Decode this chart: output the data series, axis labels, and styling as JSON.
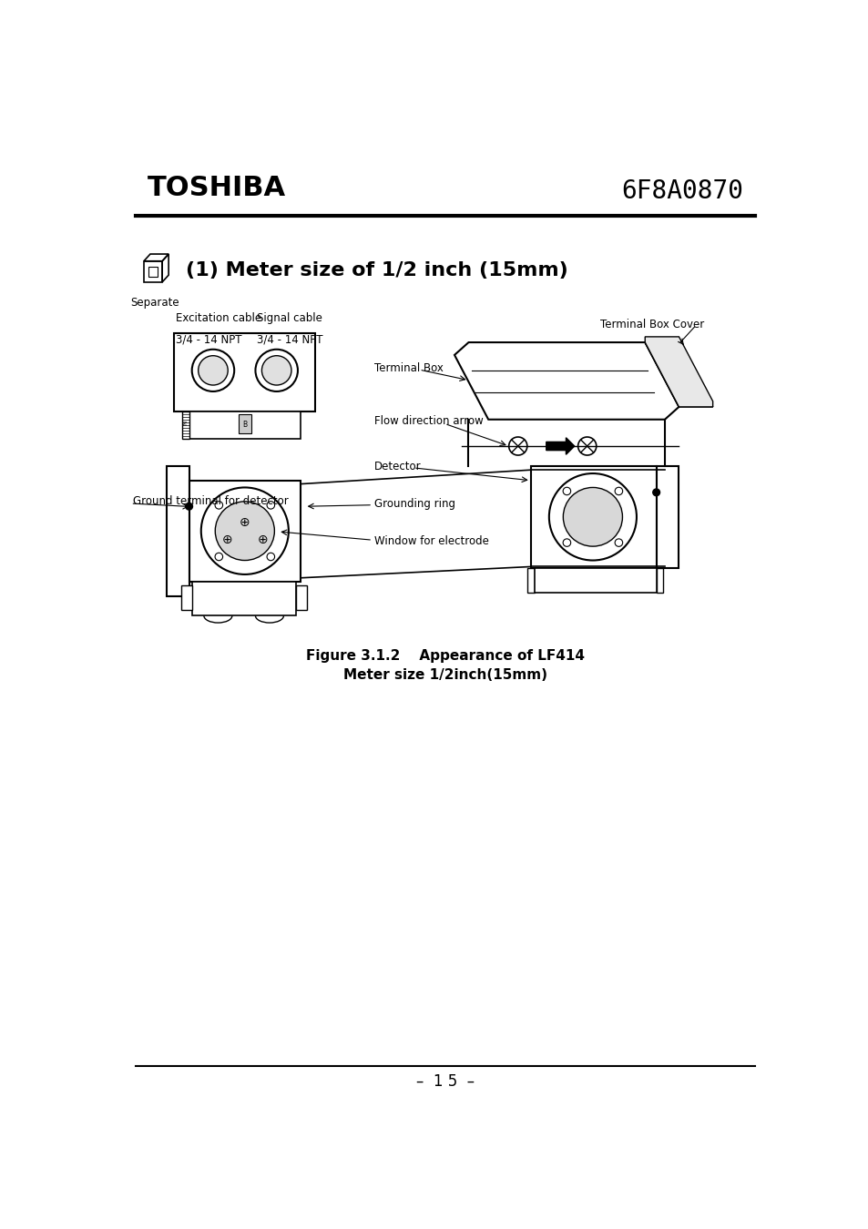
{
  "bg_color": "#ffffff",
  "header_title_left": "TOSHIBA",
  "header_title_right": "6F8A0870",
  "section_title": "(1) Meter size of 1/2 inch (15mm)",
  "separate_label": "Separate",
  "figure_caption_line1": "Figure 3.1.2    Appearance of LF414",
  "figure_caption_line2": "Meter size 1/2inch(15mm)",
  "footer_text": "–  1 5  –",
  "labels": {
    "excitation_cable_l1": "Excitation cable",
    "excitation_cable_l2": "3/4 - 14 NPT",
    "signal_cable_l1": "Signal cable",
    "signal_cable_l2": "3/4 - 14 NPT",
    "terminal_box_cover": "Terminal Box Cover",
    "terminal_box": "Terminal Box",
    "flow_direction": "Flow direction arrow",
    "detector": "Detector",
    "grounding_ring": "Grounding ring",
    "window_electrode": "Window for electrode",
    "ground_terminal": "Ground terminal for detector"
  }
}
